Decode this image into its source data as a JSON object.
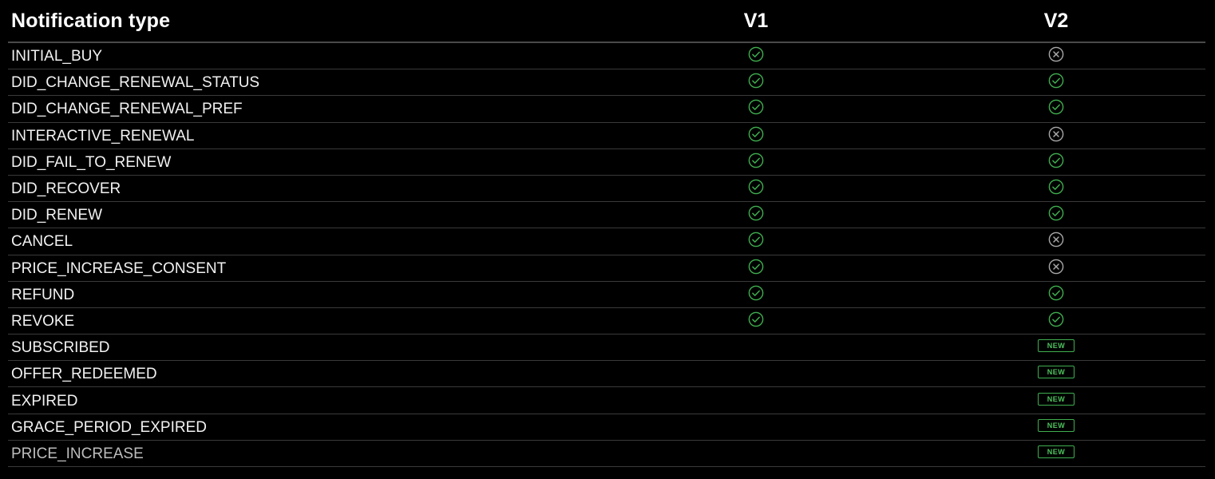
{
  "header": {
    "name_label": "Notification type",
    "v1_label": "V1",
    "v2_label": "V2"
  },
  "colors": {
    "check": "#3fae4f",
    "cross": "#a8a8a8",
    "new_badge": "#3fae4f"
  },
  "rows": [
    {
      "name": "INITIAL_BUY",
      "v1": "check-icon",
      "v2": "cross-icon"
    },
    {
      "name": "DID_CHANGE_RENEWAL_STATUS",
      "v1": "check-icon",
      "v2": "check-icon"
    },
    {
      "name": "DID_CHANGE_RENEWAL_PREF",
      "v1": "check-icon",
      "v2": "check-icon"
    },
    {
      "name": "INTERACTIVE_RENEWAL",
      "v1": "check-icon",
      "v2": "cross-icon"
    },
    {
      "name": "DID_FAIL_TO_RENEW",
      "v1": "check-icon",
      "v2": "check-icon"
    },
    {
      "name": "DID_RECOVER",
      "v1": "check-icon",
      "v2": "check-icon"
    },
    {
      "name": "DID_RENEW",
      "v1": "check-icon",
      "v2": "check-icon"
    },
    {
      "name": "CANCEL",
      "v1": "check-icon",
      "v2": "cross-icon"
    },
    {
      "name": "PRICE_INCREASE_CONSENT",
      "v1": "check-icon",
      "v2": "cross-icon"
    },
    {
      "name": "REFUND",
      "v1": "check-icon",
      "v2": "check-icon"
    },
    {
      "name": "REVOKE",
      "v1": "check-icon",
      "v2": "check-icon"
    },
    {
      "name": "SUBSCRIBED",
      "v1": "",
      "v2": "new-badge",
      "badge_text": "NEW"
    },
    {
      "name": "OFFER_REDEEMED",
      "v1": "",
      "v2": "new-badge",
      "badge_text": "NEW"
    },
    {
      "name": "EXPIRED",
      "v1": "",
      "v2": "new-badge",
      "badge_text": "NEW"
    },
    {
      "name": "GRACE_PERIOD_EXPIRED",
      "v1": "",
      "v2": "new-badge",
      "badge_text": "NEW"
    },
    {
      "name": "PRICE_INCREASE",
      "v1": "",
      "v2": "new-badge",
      "badge_text": "NEW",
      "dim": true
    }
  ]
}
